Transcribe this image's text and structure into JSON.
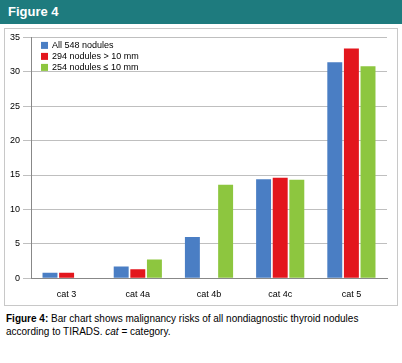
{
  "header": {
    "title": "Figure 4"
  },
  "chart_data": {
    "type": "bar",
    "categories": [
      "cat 3",
      "cat 4a",
      "cat 4b",
      "cat 4c",
      "cat 5"
    ],
    "series": [
      {
        "name": "All 548 nodules",
        "color": "#4a7ec4",
        "values": [
          0.8,
          1.7,
          6.0,
          14.4,
          31.4
        ]
      },
      {
        "name": "294 nodules > 10 mm",
        "color": "#e3161d",
        "values": [
          0.8,
          1.3,
          0,
          14.6,
          33.4
        ]
      },
      {
        "name": "254 nodules ≤ 10 mm",
        "color": "#8dc63f",
        "values": [
          0,
          2.7,
          13.6,
          14.3,
          30.8
        ]
      }
    ],
    "ylim": [
      0,
      35
    ],
    "yticks": [
      0,
      5,
      10,
      15,
      20,
      25,
      30,
      35
    ],
    "grid": true,
    "legend": "upper left"
  },
  "caption": {
    "label": "Figure 4:",
    "text": "Bar chart shows malignancy risks of all nondiagnostic thyroid nodules according to TIRADS.",
    "abbreviation": "cat",
    "definition": "= category."
  }
}
